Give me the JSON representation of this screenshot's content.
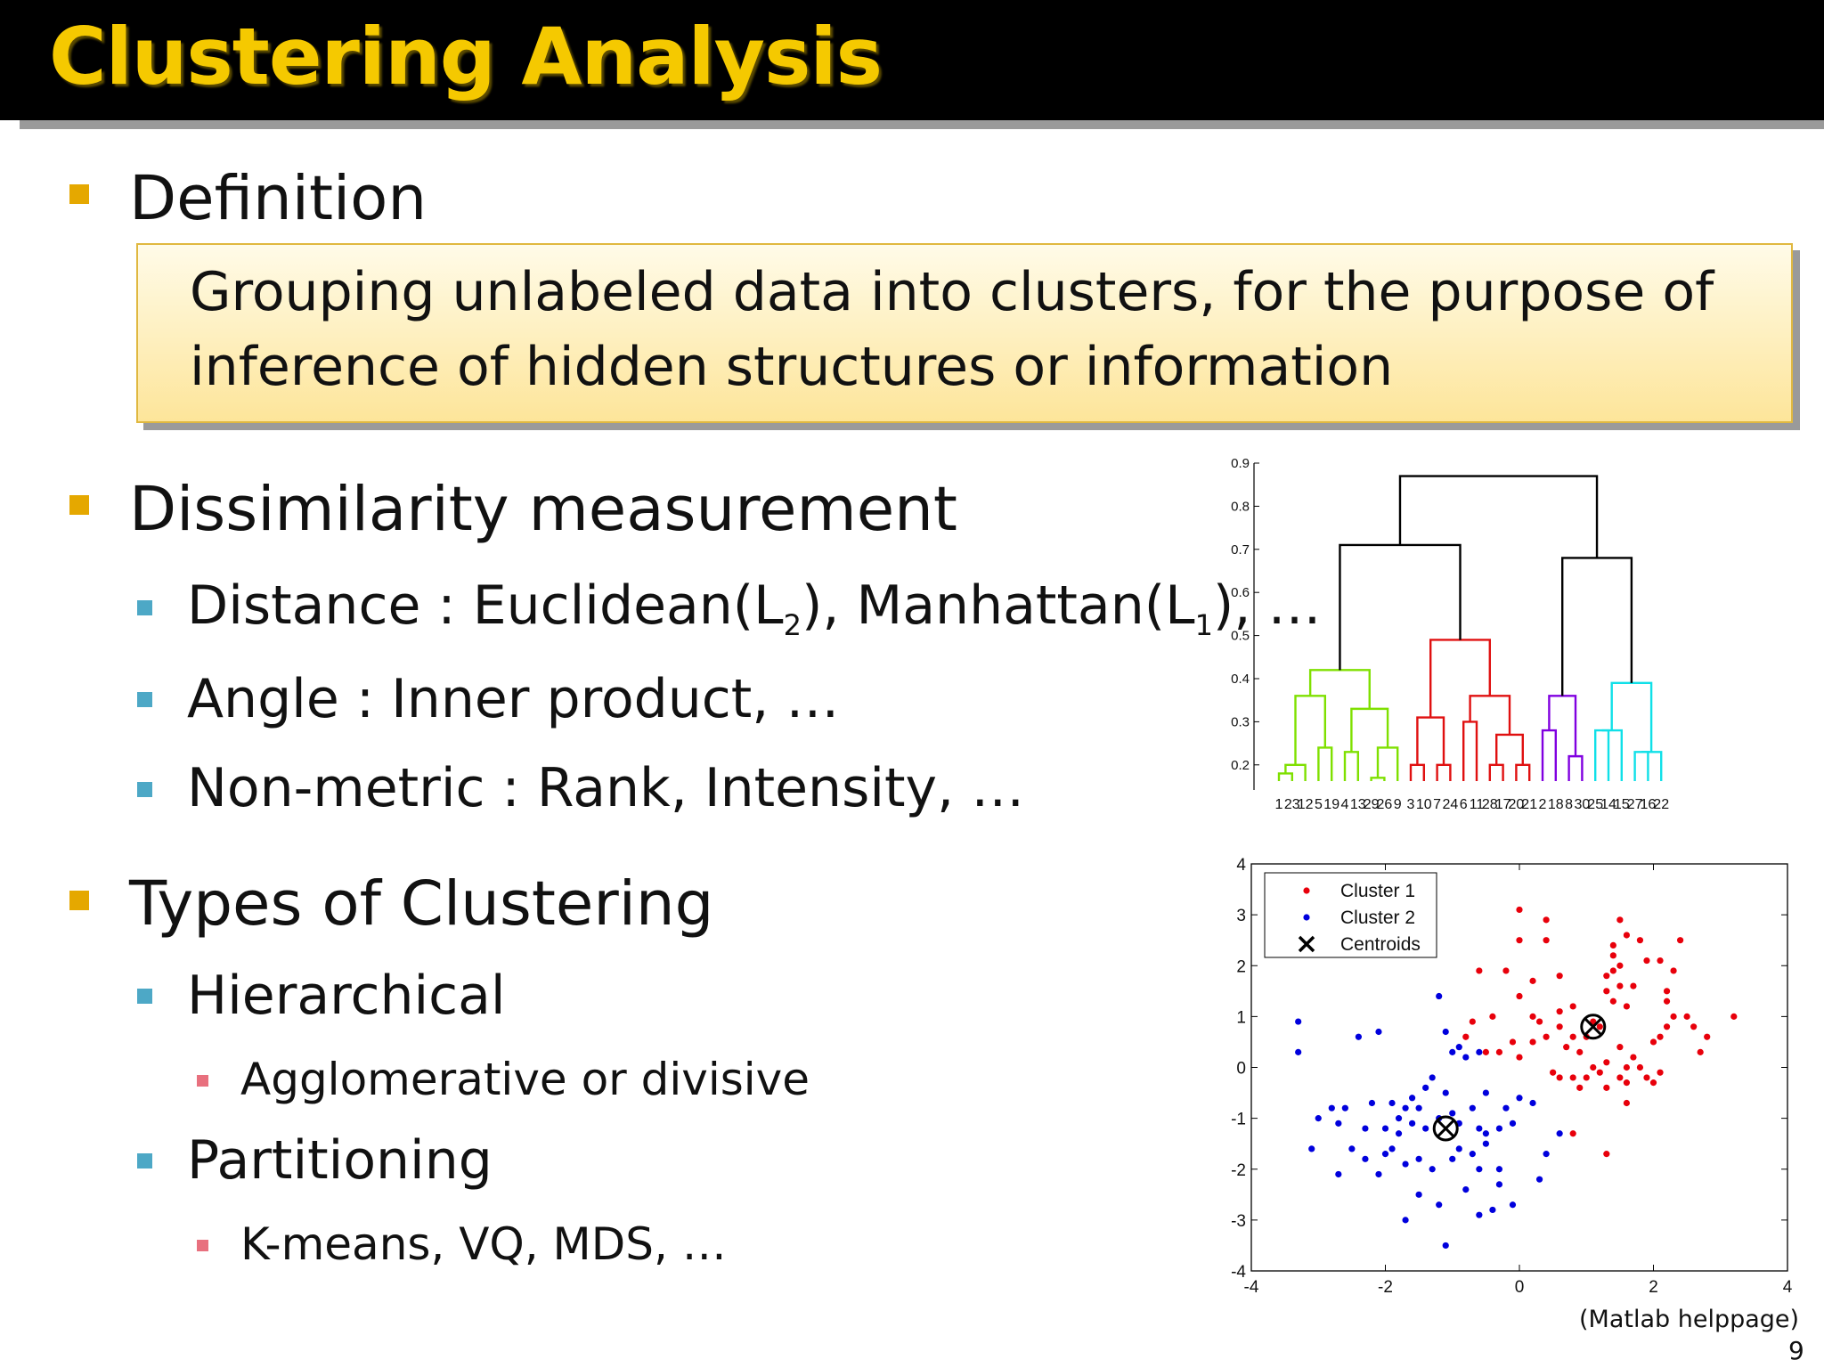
{
  "slide": {
    "title": "Clustering Analysis",
    "page_number": "9",
    "caption": "(Matlab helppage)"
  },
  "definition": {
    "heading": "Definition",
    "line1": "Grouping unlabeled data into clusters, for the purpose of",
    "line2": "inference of hidden structures or information"
  },
  "dissimilarity": {
    "heading": "Dissimilarity measurement",
    "distance_prefix": "Distance : Euclidean(L",
    "distance_sub1": "2",
    "distance_mid": "), Manhattan(L",
    "distance_sub2": "1",
    "distance_suffix": "), …",
    "angle": "Angle : Inner product, …",
    "nonmetric": "Non-metric : Rank, Intensity, …"
  },
  "types": {
    "heading": "Types of Clustering",
    "hierarchical": "Hierarchical",
    "hierarchical_detail": "Agglomerative or divisive",
    "partitioning": "Partitioning",
    "partitioning_detail": "K-means, VQ, MDS, …"
  },
  "colors": {
    "title": "#f5c900",
    "bullet": "#e5a800",
    "sub_bullet": "#4da8c6",
    "subsub_bullet": "#e8707e",
    "cluster1": "#e8000b",
    "cluster2": "#0000dd",
    "dendro_green": "#7fe000",
    "dendro_red": "#e01010",
    "dendro_purple": "#8000e0",
    "dendro_cyan": "#10e0e8"
  },
  "chart_data": [
    {
      "type": "dendrogram",
      "ylim": [
        0.15,
        0.9
      ],
      "yticks": [
        "0.2",
        "0.3",
        "0.4",
        "0.5",
        "0.6",
        "0.7",
        "0.8",
        "0.9"
      ],
      "leaf_labels": [
        "1",
        "23",
        "12",
        "5",
        "19",
        "4",
        "13",
        "29",
        "26",
        "9",
        "3",
        "10",
        "7",
        "24",
        "6",
        "11",
        "28",
        "17",
        "20",
        "21",
        "2",
        "18",
        "8",
        "30",
        "25",
        "14",
        "15",
        "27",
        "16",
        "22"
      ],
      "clusters": [
        {
          "color": "green",
          "leaves": [
            "1",
            "23",
            "12",
            "5",
            "19",
            "4",
            "13",
            "29",
            "26",
            "9"
          ],
          "merge_height": 0.42
        },
        {
          "color": "red",
          "leaves": [
            "3",
            "10",
            "7",
            "24",
            "6",
            "11",
            "28",
            "17",
            "20",
            "21"
          ],
          "merge_height": 0.49
        },
        {
          "color": "purple",
          "leaves": [
            "2",
            "18",
            "8",
            "30"
          ],
          "merge_height": 0.36
        },
        {
          "color": "cyan",
          "leaves": [
            "25",
            "14",
            "15",
            "27",
            "16",
            "22"
          ],
          "merge_height": 0.39
        }
      ],
      "top_merges": [
        {
          "joins": [
            "green",
            "red"
          ],
          "height": 0.71
        },
        {
          "joins": [
            "purple",
            "cyan"
          ],
          "height": 0.68
        },
        {
          "joins": [
            "left",
            "right"
          ],
          "height": 0.87
        }
      ]
    },
    {
      "type": "scatter",
      "xlim": [
        -4,
        4
      ],
      "ylim": [
        -4,
        4
      ],
      "xticks": [
        "-4",
        "-2",
        "0",
        "2",
        "4"
      ],
      "yticks": [
        "4",
        "3",
        "2",
        "1",
        "0",
        "-1",
        "-2",
        "-3",
        "-4"
      ],
      "legend": [
        "Cluster 1",
        "Cluster 2",
        "Centroids"
      ],
      "legend_position": "top-left",
      "series": [
        {
          "name": "Cluster 1",
          "color": "red",
          "points": [
            [
              0,
              3.1
            ],
            [
              0.4,
              2.9
            ],
            [
              0,
              2.5
            ],
            [
              0.4,
              2.5
            ],
            [
              -0.6,
              1.9
            ],
            [
              -0.2,
              1.9
            ],
            [
              0,
              1.4
            ],
            [
              0.2,
              1.7
            ],
            [
              0.6,
              1.8
            ],
            [
              0.8,
              1.2
            ],
            [
              1.3,
              1.5
            ],
            [
              1.4,
              2.4
            ],
            [
              1.4,
              2.2
            ],
            [
              1.5,
              2.0
            ],
            [
              1.4,
              1.9
            ],
            [
              1.5,
              1.6
            ],
            [
              1.3,
              1.8
            ],
            [
              1.5,
              2.9
            ],
            [
              1.6,
              2.6
            ],
            [
              1.6,
              1.2
            ],
            [
              1.7,
              1.6
            ],
            [
              1.8,
              2.5
            ],
            [
              1.9,
              2.1
            ],
            [
              2.1,
              2.1
            ],
            [
              2.2,
              1.5
            ],
            [
              2.4,
              2.5
            ],
            [
              2.3,
              1.9
            ],
            [
              2.2,
              1.3
            ],
            [
              2.3,
              1.0
            ],
            [
              2.2,
              0.8
            ],
            [
              2.5,
              1.0
            ],
            [
              2.6,
              0.8
            ],
            [
              2.7,
              0.3
            ],
            [
              2.8,
              0.6
            ],
            [
              3.2,
              1.0
            ],
            [
              -0.4,
              1.0
            ],
            [
              -0.7,
              0.9
            ],
            [
              -0.8,
              0.6
            ],
            [
              -0.5,
              0.3
            ],
            [
              -0.3,
              0.3
            ],
            [
              -0.1,
              0.5
            ],
            [
              0,
              0.2
            ],
            [
              0.2,
              0.5
            ],
            [
              0.4,
              0.6
            ],
            [
              0.6,
              0.8
            ],
            [
              0.7,
              0.4
            ],
            [
              0.8,
              0.6
            ],
            [
              0.9,
              0.3
            ],
            [
              1.0,
              0.6
            ],
            [
              1.1,
              0.0
            ],
            [
              1.0,
              -0.2
            ],
            [
              0.8,
              -0.2
            ],
            [
              0.9,
              -0.4
            ],
            [
              1.2,
              -0.1
            ],
            [
              1.3,
              0.1
            ],
            [
              1.5,
              0.4
            ],
            [
              1.6,
              0.0
            ],
            [
              1.7,
              0.2
            ],
            [
              1.8,
              0.0
            ],
            [
              1.9,
              -0.2
            ],
            [
              2.0,
              -0.3
            ],
            [
              2.1,
              -0.1
            ],
            [
              2.0,
              0.5
            ],
            [
              2.1,
              0.6
            ],
            [
              1.3,
              -0.4
            ],
            [
              1.5,
              -0.2
            ],
            [
              1.6,
              -0.3
            ],
            [
              0.8,
              -1.3
            ],
            [
              1.3,
              -1.7
            ],
            [
              1.6,
              -0.7
            ],
            [
              0.5,
              -0.1
            ],
            [
              0.6,
              -0.2
            ],
            [
              0.2,
              1.0
            ],
            [
              0.3,
              0.9
            ],
            [
              0.6,
              1.1
            ],
            [
              1.1,
              0.9
            ],
            [
              1.2,
              0.8
            ],
            [
              1.4,
              1.3
            ]
          ]
        },
        {
          "name": "Cluster 2",
          "color": "blue",
          "points": [
            [
              -3.3,
              0.9
            ],
            [
              -3.3,
              0.3
            ],
            [
              -2.1,
              0.7
            ],
            [
              -2.4,
              0.6
            ],
            [
              -1.2,
              1.4
            ],
            [
              -1.1,
              0.7
            ],
            [
              -1.0,
              0.3
            ],
            [
              -0.9,
              0.4
            ],
            [
              -0.8,
              0.2
            ],
            [
              -0.6,
              0.3
            ],
            [
              -1.3,
              -0.2
            ],
            [
              -1.4,
              -0.4
            ],
            [
              -1.6,
              -0.6
            ],
            [
              -1.5,
              -0.8
            ],
            [
              -1.7,
              -0.8
            ],
            [
              -1.9,
              -0.7
            ],
            [
              -2.2,
              -0.7
            ],
            [
              -2.6,
              -0.8
            ],
            [
              -2.8,
              -0.8
            ],
            [
              -3.0,
              -1.0
            ],
            [
              -2.7,
              -1.1
            ],
            [
              -2.3,
              -1.2
            ],
            [
              -2.0,
              -1.2
            ],
            [
              -1.8,
              -1.0
            ],
            [
              -1.6,
              -1.1
            ],
            [
              -1.4,
              -1.2
            ],
            [
              -1.2,
              -1.0
            ],
            [
              -1.0,
              -0.9
            ],
            [
              -0.9,
              -1.1
            ],
            [
              -0.7,
              -0.8
            ],
            [
              -0.6,
              -1.2
            ],
            [
              -0.5,
              -1.3
            ],
            [
              -0.3,
              -1.2
            ],
            [
              -0.1,
              -1.1
            ],
            [
              -0.2,
              -0.8
            ],
            [
              0,
              -0.6
            ],
            [
              0.2,
              -0.7
            ],
            [
              0.6,
              -1.3
            ],
            [
              -3.1,
              -1.6
            ],
            [
              -2.7,
              -2.1
            ],
            [
              -2.3,
              -1.8
            ],
            [
              -2.1,
              -2.1
            ],
            [
              -2.0,
              -1.7
            ],
            [
              -1.9,
              -1.6
            ],
            [
              -1.7,
              -1.9
            ],
            [
              -1.5,
              -1.8
            ],
            [
              -1.3,
              -2.0
            ],
            [
              -1.0,
              -1.8
            ],
            [
              -0.9,
              -1.6
            ],
            [
              -0.7,
              -1.7
            ],
            [
              -0.5,
              -1.5
            ],
            [
              -0.6,
              -2.0
            ],
            [
              -0.3,
              -2.0
            ],
            [
              -0.3,
              -2.3
            ],
            [
              0.4,
              -1.7
            ],
            [
              0.3,
              -2.2
            ],
            [
              -1.2,
              -2.7
            ],
            [
              -1.7,
              -3.0
            ],
            [
              -1.1,
              -3.5
            ],
            [
              -0.6,
              -2.9
            ],
            [
              -0.1,
              -2.7
            ],
            [
              -0.4,
              -2.8
            ],
            [
              -1.5,
              -2.5
            ],
            [
              -0.8,
              -2.4
            ],
            [
              -1.8,
              -1.3
            ],
            [
              -2.5,
              -1.6
            ],
            [
              -0.5,
              -0.5
            ],
            [
              -1.1,
              -0.5
            ]
          ]
        }
      ],
      "centroids": [
        [
          1.1,
          0.8
        ],
        [
          -1.1,
          -1.2
        ]
      ]
    }
  ]
}
